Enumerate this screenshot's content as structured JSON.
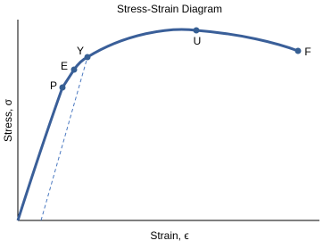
{
  "title": "Stress-Strain Diagram",
  "x_axis_label": "Strain, ϵ",
  "y_axis_label": "Stress, σ",
  "points": [
    {
      "label": "P"
    },
    {
      "label": "E"
    },
    {
      "label": "Y"
    },
    {
      "label": "U"
    },
    {
      "label": "F"
    }
  ]
}
